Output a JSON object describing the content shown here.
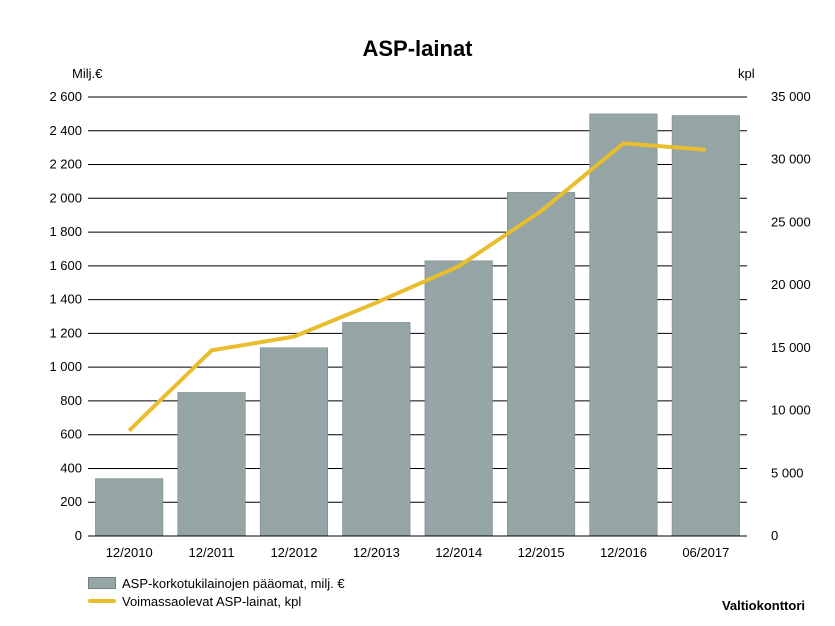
{
  "chart_data": {
    "type": "bar",
    "title": "ASP-lainat",
    "ylabel_left": "Milj.€",
    "ylabel_right": "kpl",
    "categories": [
      "12/2010",
      "12/2011",
      "12/2012",
      "12/2013",
      "12/2014",
      "12/2015",
      "12/2016",
      "06/2017"
    ],
    "series": [
      {
        "name": "ASP-korkotukilainojen pääomat, milj. €",
        "type": "bar",
        "axis": "left",
        "values": [
          340,
          850,
          1115,
          1265,
          1630,
          2035,
          2500,
          2490
        ]
      },
      {
        "name": "Voimassaolevat ASP-lainat, kpl",
        "type": "line",
        "axis": "right",
        "values": [
          8400,
          14800,
          15900,
          18600,
          21500,
          25900,
          31300,
          30800
        ]
      }
    ],
    "ylim_left": [
      0,
      2600
    ],
    "yticks_left": [
      "0",
      "200",
      "400",
      "600",
      "800",
      "1 000",
      "1 200",
      "1 400",
      "1 600",
      "1 800",
      "2 000",
      "2 200",
      "2 400",
      "2 600"
    ],
    "ylim_right": [
      0,
      35000
    ],
    "yticks_right": [
      "0",
      "5 000",
      "10 000",
      "15 000",
      "20 000",
      "25 000",
      "30 000",
      "35 000"
    ],
    "grid": true,
    "legend": "bottom-left",
    "colors": {
      "bar": "#95a5a6",
      "bar_edge": "#6f7f80",
      "line": "#e8bd2e",
      "grid": "#000000"
    }
  },
  "footer": {
    "credit": "Valtiokonttori"
  }
}
